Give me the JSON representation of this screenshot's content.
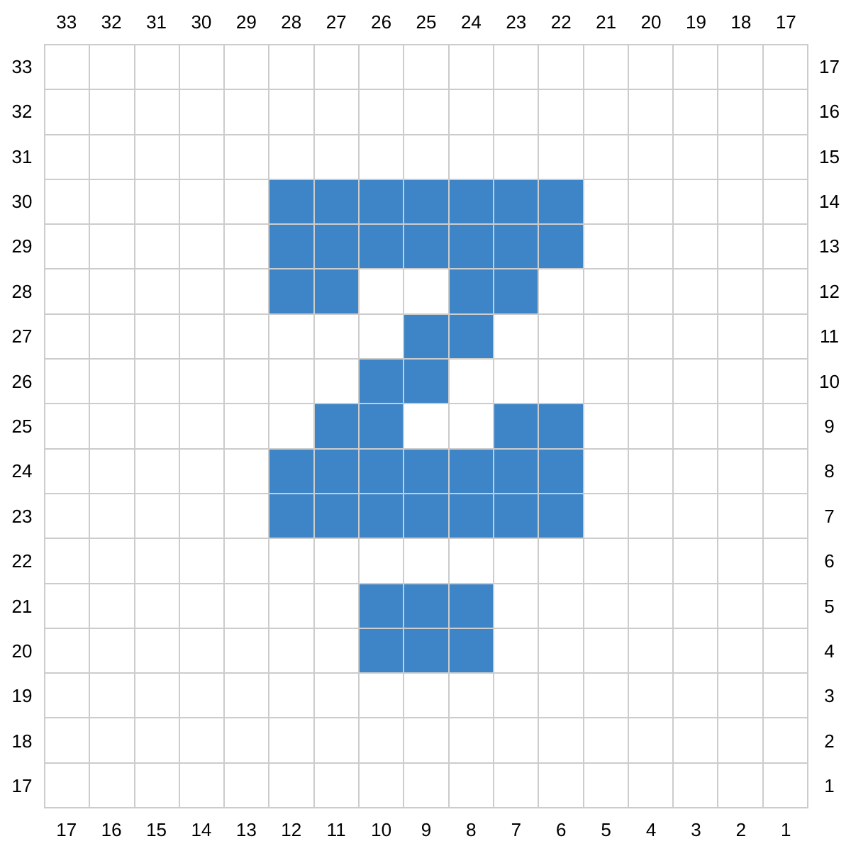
{
  "chart_data": {
    "type": "heatmap",
    "title": "",
    "description": "17x17 stitch/pixel pattern grid chart with numbered rows and columns on all four sides; blue filled squares form a glyph",
    "grid": {
      "rows": 17,
      "cols": 17
    },
    "axis_labels": {
      "top": [
        "33",
        "32",
        "31",
        "30",
        "29",
        "28",
        "27",
        "26",
        "25",
        "24",
        "23",
        "22",
        "21",
        "20",
        "19",
        "18",
        "17"
      ],
      "left": [
        "33",
        "32",
        "31",
        "30",
        "29",
        "28",
        "27",
        "26",
        "25",
        "24",
        "23",
        "22",
        "21",
        "20",
        "19",
        "18",
        "17"
      ],
      "right": [
        "17",
        "16",
        "15",
        "14",
        "13",
        "12",
        "11",
        "10",
        "9",
        "8",
        "7",
        "6",
        "5",
        "4",
        "3",
        "2",
        "1"
      ],
      "bottom": [
        "17",
        "16",
        "15",
        "14",
        "13",
        "12",
        "11",
        "10",
        "9",
        "8",
        "7",
        "6",
        "5",
        "4",
        "3",
        "2",
        "1"
      ]
    },
    "legend_position": "none",
    "grid_on": true,
    "pattern_filled_cells": [
      {
        "row_label_left": "30",
        "col_labels_top": [
          "28",
          "27",
          "26",
          "25",
          "24",
          "23",
          "22"
        ]
      },
      {
        "row_label_left": "29",
        "col_labels_top": [
          "28",
          "27",
          "26",
          "25",
          "24",
          "23",
          "22"
        ]
      },
      {
        "row_label_left": "28",
        "col_labels_top": [
          "28",
          "27",
          "24",
          "23"
        ]
      },
      {
        "row_label_left": "27",
        "col_labels_top": [
          "25",
          "24"
        ]
      },
      {
        "row_label_left": "26",
        "col_labels_top": [
          "26",
          "25"
        ]
      },
      {
        "row_label_left": "25",
        "col_labels_top": [
          "27",
          "26",
          "23",
          "22"
        ]
      },
      {
        "row_label_left": "24",
        "col_labels_top": [
          "28",
          "27",
          "26",
          "25",
          "24",
          "23",
          "22"
        ]
      },
      {
        "row_label_left": "23",
        "col_labels_top": [
          "28",
          "27",
          "26",
          "25",
          "24",
          "23",
          "22"
        ]
      },
      {
        "row_label_left": "21",
        "col_labels_top": [
          "26",
          "25",
          "24"
        ]
      },
      {
        "row_label_left": "20",
        "col_labels_top": [
          "26",
          "25",
          "24"
        ]
      }
    ],
    "colors": {
      "filled": "#3d85c6",
      "empty": "#ffffff",
      "grid_line": "#cccccc",
      "label_text": "#000000",
      "background": "#ffffff"
    }
  }
}
